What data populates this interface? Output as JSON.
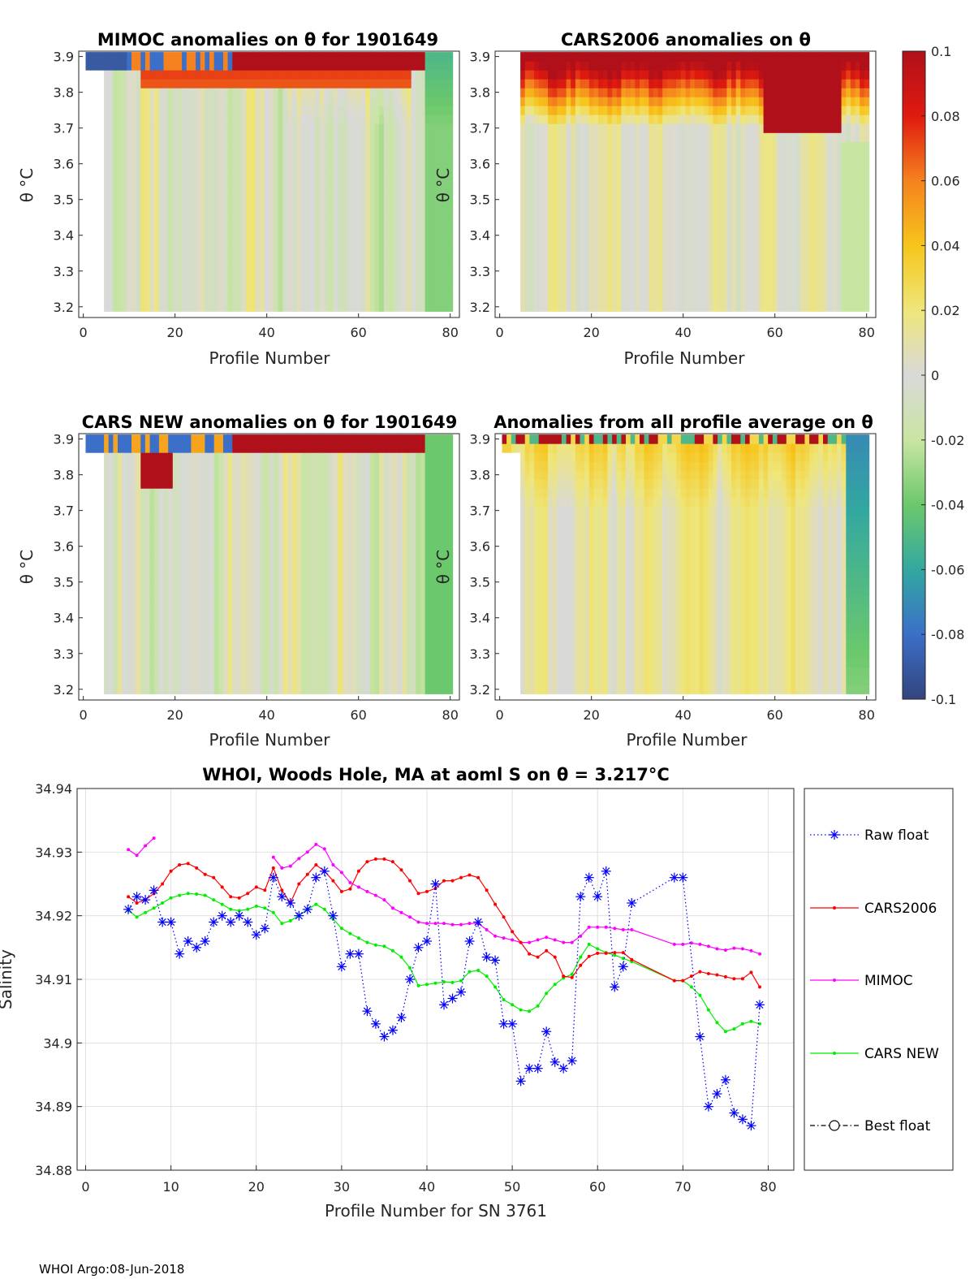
{
  "footer": "WHOI Argo:08-Jun-2018",
  "colors": {
    "raw_float": "#0000ff",
    "cars2006": "#ff0000",
    "mimoc": "#ff00ff",
    "cars_new": "#00ee00",
    "best_float": "#000000",
    "grid": "#e0e0e0",
    "axis": "#262626"
  },
  "heatmaps": [
    {
      "title": "MIMOC anomalies on θ  for 1901649",
      "xlabel": "Profile Number",
      "ylabel": "θ °C",
      "variant": 0
    },
    {
      "title": "CARS2006 anomalies on θ",
      "xlabel": "Profile Number",
      "ylabel": "θ °C",
      "variant": 1
    },
    {
      "title": "CARS NEW anomalies on θ for 1901649",
      "xlabel": "Profile Number",
      "ylabel": "θ °C",
      "variant": 2
    },
    {
      "title": "Anomalies from all profile average on θ",
      "xlabel": "Profile Number",
      "ylabel": "θ °C",
      "variant": 3
    }
  ],
  "heatmap_axes": {
    "xticks": [
      "0",
      "20",
      "40",
      "60",
      "80"
    ],
    "xtick_values": [
      0,
      20,
      40,
      60,
      80
    ],
    "xlim": [
      -1,
      82
    ],
    "yticks": [
      "3.9",
      "3.8",
      "3.7",
      "3.6",
      "3.5",
      "3.4",
      "3.3",
      "3.2"
    ],
    "ytick_values": [
      3.9,
      3.8,
      3.7,
      3.6,
      3.5,
      3.4,
      3.3,
      3.2
    ],
    "ylim": [
      3.17,
      3.915
    ]
  },
  "colorbar": {
    "ticks": [
      "0.1",
      "0.08",
      "0.06",
      "0.04",
      "0.02",
      "0",
      "-0.02",
      "-0.04",
      "-0.06",
      "-0.08",
      "-0.1"
    ],
    "tick_values": [
      0.1,
      0.08,
      0.06,
      0.04,
      0.02,
      0,
      -0.02,
      -0.04,
      -0.06,
      -0.08,
      -0.1
    ],
    "range": [
      -0.1,
      0.1
    ]
  },
  "chart_data": {
    "type": "line",
    "title": "WHOI, Woods Hole, MA at aoml S on θ = 3.217°C",
    "xlabel": "Profile Number for SN 3761",
    "ylabel": "Salinity",
    "xlim": [
      -1,
      83
    ],
    "ylim": [
      34.88,
      34.94
    ],
    "xticks": [
      "0",
      "10",
      "20",
      "30",
      "40",
      "50",
      "60",
      "70",
      "80"
    ],
    "xtick_values": [
      0,
      10,
      20,
      30,
      40,
      50,
      60,
      70,
      80
    ],
    "yticks": [
      "34.94",
      "34.93",
      "34.92",
      "34.91",
      "34.9",
      "34.89",
      "34.88"
    ],
    "ytick_values": [
      34.94,
      34.93,
      34.92,
      34.91,
      34.9,
      34.89,
      34.88
    ],
    "grid": true,
    "legend_position": "right",
    "series": [
      {
        "name": "Raw float",
        "style": "dotted-asterisk",
        "x": [
          5,
          6,
          7,
          8,
          9,
          10,
          11,
          12,
          13,
          14,
          15,
          16,
          17,
          18,
          19,
          20,
          21,
          22,
          23,
          24,
          25,
          26,
          27,
          28,
          29,
          30,
          31,
          32,
          33,
          34,
          35,
          36,
          37,
          38,
          39,
          40,
          41,
          42,
          43,
          44,
          45,
          46,
          47,
          48,
          49,
          50,
          51,
          52,
          53,
          54,
          55,
          56,
          57,
          58,
          59,
          60,
          61,
          62,
          63,
          64,
          69,
          70,
          72,
          73,
          74,
          75,
          76,
          77,
          78,
          79
        ],
        "y": [
          34.921,
          34.923,
          34.9225,
          34.924,
          34.919,
          34.919,
          34.914,
          34.916,
          34.915,
          34.916,
          34.919,
          34.92,
          34.919,
          34.92,
          34.919,
          34.917,
          34.918,
          34.926,
          34.923,
          34.922,
          34.92,
          34.921,
          34.926,
          34.927,
          34.92,
          34.912,
          34.914,
          34.914,
          34.905,
          34.903,
          34.901,
          34.902,
          34.904,
          34.91,
          34.915,
          34.916,
          34.925,
          34.906,
          34.907,
          34.908,
          34.916,
          34.919,
          34.9135,
          34.913,
          34.903,
          34.903,
          34.894,
          34.896,
          34.896,
          34.9018,
          34.897,
          34.896,
          34.8972,
          34.923,
          34.926,
          34.923,
          34.927,
          34.9088,
          34.912,
          34.922,
          34.926,
          34.926,
          34.901,
          34.89,
          34.892,
          34.8942,
          34.889,
          34.888,
          34.887,
          34.906
        ]
      },
      {
        "name": "CARS2006",
        "style": "solid-dot",
        "x": [
          5,
          6,
          7,
          8,
          9,
          10,
          11,
          12,
          13,
          14,
          15,
          16,
          17,
          18,
          19,
          20,
          21,
          22,
          23,
          24,
          25,
          26,
          27,
          28,
          29,
          30,
          31,
          32,
          33,
          34,
          35,
          36,
          37,
          38,
          39,
          40,
          41,
          42,
          43,
          44,
          45,
          46,
          47,
          48,
          49,
          50,
          51,
          52,
          53,
          54,
          55,
          56,
          57,
          58,
          59,
          60,
          61,
          62,
          63,
          64,
          69,
          70,
          71,
          72,
          73,
          74,
          75,
          76,
          77,
          78,
          79
        ],
        "y": [
          34.923,
          34.922,
          34.9225,
          34.9235,
          34.925,
          34.927,
          34.928,
          34.9282,
          34.9275,
          34.9265,
          34.926,
          34.9245,
          34.923,
          34.9228,
          34.9235,
          34.9245,
          34.924,
          34.9275,
          34.924,
          34.922,
          34.925,
          34.9265,
          34.928,
          34.927,
          34.9255,
          34.9238,
          34.9242,
          34.927,
          34.9285,
          34.9289,
          34.9289,
          34.9285,
          34.9272,
          34.9255,
          34.9235,
          34.9238,
          34.9243,
          34.9255,
          34.9255,
          34.926,
          34.9264,
          34.926,
          34.924,
          34.9218,
          34.9198,
          34.9175,
          34.9158,
          34.914,
          34.9135,
          34.9145,
          34.9135,
          34.9105,
          34.9103,
          34.9122,
          34.9136,
          34.9141,
          34.9141,
          34.9142,
          34.9142,
          34.9131,
          34.9098,
          34.9098,
          34.9105,
          34.9112,
          34.9109,
          34.9107,
          34.9104,
          34.9101,
          34.9101,
          34.9111,
          34.9088
        ]
      },
      {
        "name": "MIMOC",
        "style": "solid-dot",
        "x": [
          5,
          6,
          7,
          8,
          null,
          22,
          23,
          24,
          25,
          26,
          27,
          28,
          29,
          30,
          31,
          32,
          33,
          34,
          35,
          36,
          37,
          38,
          39,
          40,
          41,
          42,
          43,
          44,
          45,
          46,
          47,
          48,
          49,
          50,
          51,
          52,
          53,
          54,
          55,
          56,
          57,
          58,
          59,
          60,
          61,
          62,
          63,
          64,
          69,
          70,
          71,
          72,
          73,
          74,
          75,
          76,
          77,
          78,
          79
        ],
        "y": [
          34.9304,
          34.9295,
          34.931,
          34.9322,
          null,
          34.9292,
          34.9275,
          34.9278,
          34.929,
          34.93,
          34.9312,
          34.9305,
          34.928,
          34.9268,
          34.9252,
          34.9245,
          34.9238,
          34.9232,
          34.9225,
          34.9212,
          34.9205,
          34.9198,
          34.919,
          34.9188,
          34.9188,
          34.9188,
          34.9186,
          34.9186,
          34.9188,
          34.9188,
          34.9178,
          34.9168,
          34.9165,
          34.9162,
          34.9158,
          34.9158,
          34.9162,
          34.9166,
          34.9162,
          34.9158,
          34.9158,
          34.9168,
          34.9182,
          34.9182,
          34.9182,
          34.918,
          34.9178,
          34.9178,
          34.9155,
          34.9155,
          34.9157,
          34.9155,
          34.9152,
          34.9148,
          34.9146,
          34.9149,
          34.9148,
          34.9145,
          34.914
        ]
      },
      {
        "name": "CARS NEW",
        "style": "solid-dot",
        "x": [
          5,
          6,
          7,
          8,
          9,
          10,
          11,
          12,
          13,
          14,
          15,
          16,
          17,
          18,
          19,
          20,
          21,
          22,
          23,
          24,
          25,
          26,
          27,
          28,
          29,
          30,
          31,
          32,
          33,
          34,
          35,
          36,
          37,
          38,
          39,
          40,
          41,
          42,
          43,
          44,
          45,
          46,
          47,
          48,
          49,
          50,
          51,
          52,
          53,
          54,
          55,
          56,
          57,
          58,
          59,
          60,
          61,
          62,
          63,
          64,
          69,
          70,
          71,
          72,
          73,
          74,
          75,
          76,
          77,
          78,
          79
        ],
        "y": [
          34.9208,
          34.9198,
          34.9205,
          34.9212,
          34.922,
          34.9228,
          34.9232,
          34.9235,
          34.9234,
          34.9232,
          34.9225,
          34.9218,
          34.921,
          34.9208,
          34.921,
          34.9215,
          34.9212,
          34.9205,
          34.9188,
          34.9192,
          34.92,
          34.921,
          34.9218,
          34.921,
          34.9195,
          34.918,
          34.9172,
          34.9165,
          34.9158,
          34.9154,
          34.9152,
          34.9145,
          34.9135,
          34.9118,
          34.909,
          34.9092,
          34.9094,
          34.9096,
          34.9095,
          34.9098,
          34.9112,
          34.9114,
          34.9105,
          34.9088,
          34.9068,
          34.906,
          34.9052,
          34.905,
          34.9058,
          34.9078,
          34.9092,
          34.9102,
          34.9108,
          34.9135,
          34.9155,
          34.9148,
          34.9142,
          34.9138,
          34.9133,
          34.9128,
          34.9098,
          34.9098,
          34.9088,
          34.9075,
          34.9052,
          34.9032,
          34.9018,
          34.9022,
          34.903,
          34.9034,
          34.903
        ]
      },
      {
        "name": "Best float",
        "style": "dashdot-circle",
        "x": [],
        "y": []
      }
    ]
  }
}
